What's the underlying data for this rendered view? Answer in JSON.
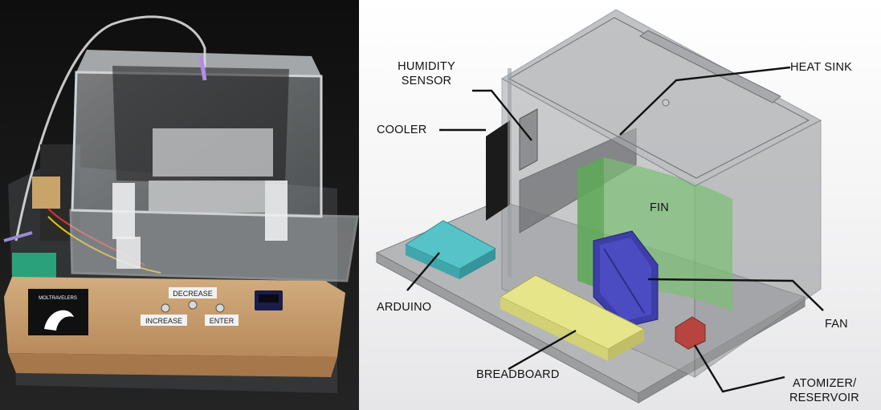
{
  "photo": {
    "logo_text": "MOLTRAVELERS",
    "button_labels": {
      "decrease": "DECREASE",
      "increase": "INCREASE",
      "enter": "ENTER"
    }
  },
  "diagram": {
    "callouts": {
      "humidity_sensor": [
        "HUMIDITY",
        "SENSOR"
      ],
      "cooler": "COOLER",
      "heat_sink": "HEAT SINK",
      "fin": "FIN",
      "arduino": "ARDUINO",
      "breadboard": "BREADBOARD",
      "fan": "FAN",
      "atomizer": [
        "ATOMIZER/",
        "RESERVOIR"
      ]
    },
    "colors": {
      "arduino": "#56c3c9",
      "breadboard": "#e6e58a",
      "fan": "#3d3ea8",
      "fin": "#5fa85a",
      "atomizer": "#b7443e",
      "cooler": "#1b1b1b"
    }
  }
}
